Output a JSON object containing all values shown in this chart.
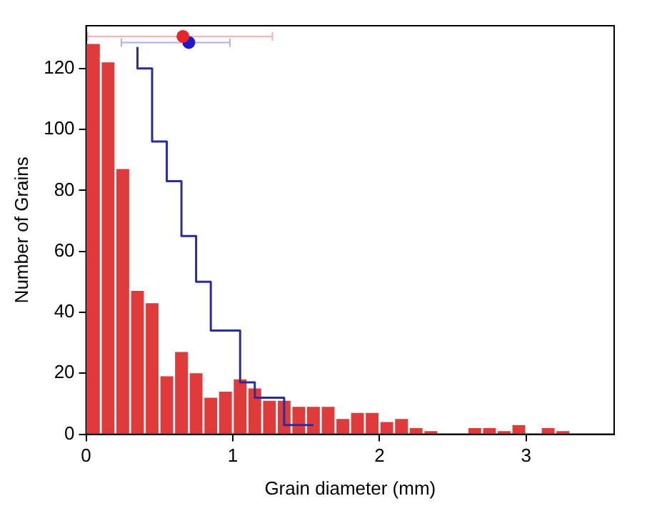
{
  "chart_data": {
    "type": "histogram",
    "xlabel": "Grain diameter (mm)",
    "ylabel": "Number of Grains",
    "bins": [
      0,
      0.1,
      0.2,
      0.3,
      0.4,
      0.5,
      0.6,
      0.7,
      0.8,
      0.9,
      1.0,
      1.1,
      1.2,
      1.3,
      1.4,
      1.5,
      1.6,
      1.7,
      1.8,
      1.9,
      2.0,
      2.1,
      2.2,
      2.3,
      2.4,
      2.5,
      2.6,
      2.7,
      2.8,
      2.9,
      3.0,
      3.1,
      3.2,
      3.3
    ],
    "series": [
      {
        "color": "#e03a3a",
        "values": [
          128,
          122,
          87,
          47,
          43,
          19,
          27,
          20,
          12,
          14,
          18,
          15,
          11,
          11,
          9,
          9,
          9,
          5,
          7,
          7,
          4,
          5,
          2,
          1,
          0,
          0,
          2,
          2,
          1,
          3,
          0,
          2,
          1
        ]
      },
      {
        "type": "step",
        "color": "#2b2b9c",
        "x": [
          0.35,
          0.45,
          0.55,
          0.65,
          0.75,
          0.85,
          0.95,
          1.05,
          1.15,
          1.25,
          1.35,
          1.45,
          1.55
        ],
        "values": [
          127,
          120,
          96,
          83,
          65,
          50,
          34,
          34,
          17,
          12,
          12,
          3,
          3
        ]
      },
      {
        "type": "scatter",
        "marker": "circle",
        "color": "#e8262a",
        "x": [
          0.66
        ],
        "values": [
          130.5
        ],
        "xerrors": [
          [
            0.01,
            1.27
          ]
        ]
      },
      {
        "type": "scatter",
        "marker": "circle",
        "color": "#1a1ad0",
        "x": [
          0.7
        ],
        "values": [
          128.5
        ],
        "xerrors": [
          [
            0.24,
            0.98
          ]
        ]
      }
    ],
    "xlim": [
      0,
      3.6
    ],
    "xticks": [
      0,
      1,
      2,
      3
    ],
    "ylim": [
      0,
      134
    ],
    "yticks": [
      0,
      20,
      40,
      60,
      80,
      100,
      120
    ],
    "grid": false
  }
}
